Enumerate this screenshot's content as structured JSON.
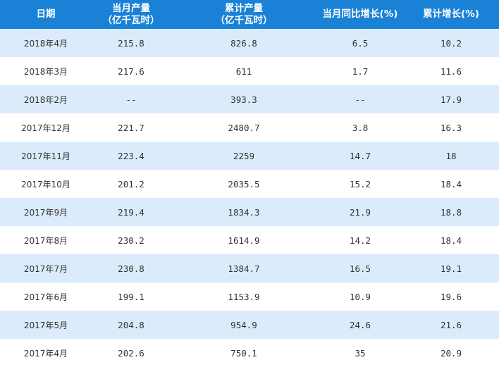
{
  "table": {
    "headers": [
      "日期",
      "当月产量\n（亿千瓦时）",
      "累计产量\n（亿千瓦时）",
      "当月同比增长(%)",
      "累计增长(%)"
    ],
    "rows": [
      [
        "2018年4月",
        "215.8",
        "826.8",
        "6.5",
        "10.2"
      ],
      [
        "2018年3月",
        "217.6",
        "611",
        "1.7",
        "11.6"
      ],
      [
        "2018年2月",
        "--",
        "393.3",
        "--",
        "17.9"
      ],
      [
        "2017年12月",
        "221.7",
        "2480.7",
        "3.8",
        "16.3"
      ],
      [
        "2017年11月",
        "223.4",
        "2259",
        "14.7",
        "18"
      ],
      [
        "2017年10月",
        "201.2",
        "2035.5",
        "15.2",
        "18.4"
      ],
      [
        "2017年9月",
        "219.4",
        "1834.3",
        "21.9",
        "18.8"
      ],
      [
        "2017年8月",
        "230.2",
        "1614.9",
        "14.2",
        "18.4"
      ],
      [
        "2017年7月",
        "230.8",
        "1384.7",
        "16.5",
        "19.1"
      ],
      [
        "2017年6月",
        "199.1",
        "1153.9",
        "10.9",
        "19.6"
      ],
      [
        "2017年5月",
        "204.8",
        "954.9",
        "24.6",
        "21.6"
      ],
      [
        "2017年4月",
        "202.6",
        "750.1",
        "35",
        "20.9"
      ]
    ]
  },
  "colors": {
    "header_bg": "#1a82d6",
    "row_alt_bg": "#dcebfb"
  }
}
